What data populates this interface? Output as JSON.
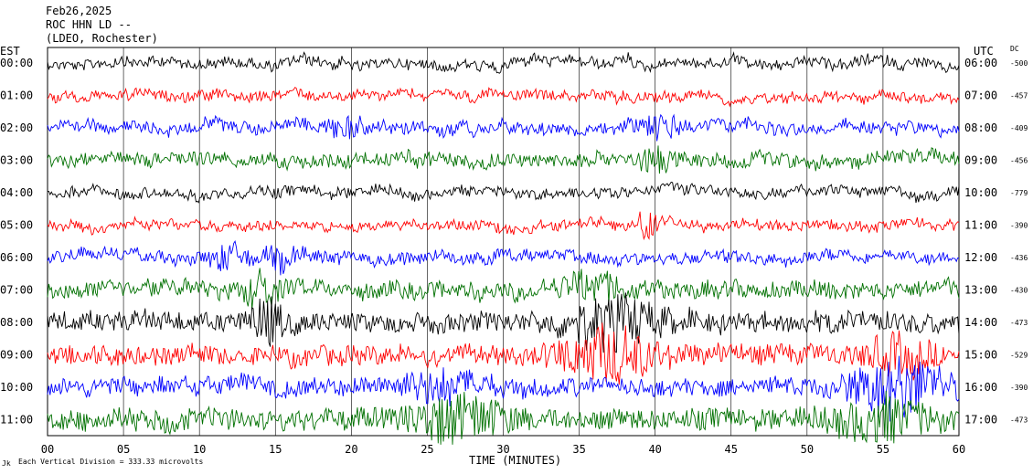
{
  "header": {
    "line1": "Feb26,2025",
    "line2": "ROC HHN LD --",
    "line3": "(LDEO, Rochester)"
  },
  "left_axis_title": "EST",
  "right_axis_title": "UTC",
  "dc_title": "DC",
  "footer": {
    "scale_note": "Each Vertical Division =  333.33 microvolts",
    "corner_mark": "Jk"
  },
  "colors": {
    "black": "#000000",
    "red": "#ff0000",
    "blue": "#0000ff",
    "green": "#007000"
  },
  "chart_data": {
    "type": "line",
    "title": "Feb26,2025",
    "xlabel": "TIME (MINUTES)",
    "ylabel": "",
    "xlim": [
      0,
      60
    ],
    "x_ticks": [
      "00",
      "05",
      "10",
      "15",
      "20",
      "25",
      "30",
      "35",
      "40",
      "45",
      "50",
      "55",
      "60"
    ],
    "grid": true,
    "series": [
      {
        "est": "00:00",
        "utc": "06:00",
        "dc": "-500",
        "color": "black",
        "amp": 0.42,
        "events": []
      },
      {
        "est": "01:00",
        "utc": "07:00",
        "dc": "-457",
        "color": "red",
        "amp": 0.4,
        "events": []
      },
      {
        "est": "02:00",
        "utc": "08:00",
        "dc": "-409",
        "color": "blue",
        "amp": 0.48,
        "events": [
          {
            "t": 19.5,
            "a": 0.6,
            "w": 1.5
          },
          {
            "t": 40.5,
            "a": 0.8,
            "w": 1.5
          }
        ]
      },
      {
        "est": "03:00",
        "utc": "09:00",
        "dc": "-456",
        "color": "green",
        "amp": 0.55,
        "events": [
          {
            "t": 40,
            "a": 0.9,
            "w": 1.0
          }
        ]
      },
      {
        "est": "04:00",
        "utc": "10:00",
        "dc": "-779",
        "color": "black",
        "amp": 0.42,
        "events": []
      },
      {
        "est": "05:00",
        "utc": "11:00",
        "dc": "-390",
        "color": "red",
        "amp": 0.4,
        "events": [
          {
            "t": 39.5,
            "a": 1.2,
            "w": 0.6
          }
        ]
      },
      {
        "est": "06:00",
        "utc": "12:00",
        "dc": "-436",
        "color": "blue",
        "amp": 0.48,
        "events": [
          {
            "t": 12,
            "a": 0.9,
            "w": 1.2
          },
          {
            "t": 15.5,
            "a": 0.7,
            "w": 1.0
          }
        ]
      },
      {
        "est": "07:00",
        "utc": "13:00",
        "dc": "-430",
        "color": "green",
        "amp": 0.7,
        "events": [
          {
            "t": 14,
            "a": 1.2,
            "w": 1.0
          },
          {
            "t": 36,
            "a": 1.0,
            "w": 2.0
          }
        ]
      },
      {
        "est": "08:00",
        "utc": "14:00",
        "dc": "-473",
        "color": "black",
        "amp": 0.78,
        "events": [
          {
            "t": 14.5,
            "a": 1.6,
            "w": 1.0
          },
          {
            "t": 37,
            "a": 1.8,
            "w": 3.0
          }
        ]
      },
      {
        "est": "09:00",
        "utc": "15:00",
        "dc": "-529",
        "color": "red",
        "amp": 0.78,
        "events": [
          {
            "t": 37,
            "a": 1.9,
            "w": 3.0
          },
          {
            "t": 56,
            "a": 1.2,
            "w": 2.0
          }
        ]
      },
      {
        "est": "10:00",
        "utc": "16:00",
        "dc": "-390",
        "color": "blue",
        "amp": 0.7,
        "events": [
          {
            "t": 26,
            "a": 1.0,
            "w": 3.0
          },
          {
            "t": 56,
            "a": 2.2,
            "w": 3.0
          }
        ]
      },
      {
        "est": "11:00",
        "utc": "17:00",
        "dc": "-473",
        "color": "green",
        "amp": 0.85,
        "events": [
          {
            "t": 27,
            "a": 1.6,
            "w": 3.0
          },
          {
            "t": 55,
            "a": 1.4,
            "w": 3.0
          }
        ]
      }
    ]
  }
}
